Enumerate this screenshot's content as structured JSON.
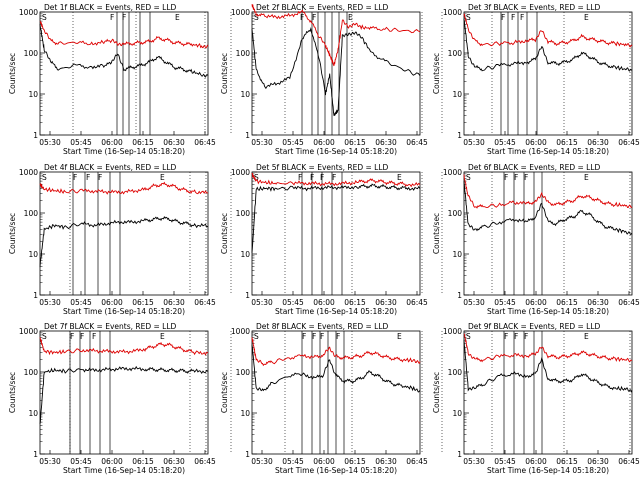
{
  "colors": {
    "events": "#000000",
    "lld": "#dd0000",
    "frame": "#000000",
    "background": "#ffffff"
  },
  "chart_data": [
    {
      "type": "line",
      "title": "Det 1f BLACK = Events, RED = LLD",
      "ylabel": "Counts/sec",
      "xlabel": "Start Time (16-Sep-14 05:18:20)",
      "yscale": "log",
      "ylim": [
        1,
        1000
      ],
      "xlim_min": [
        18,
        98
      ],
      "x_tick_labels": [
        "05:30",
        "05:45",
        "06:00",
        "06:15",
        "06:30",
        "06:45"
      ],
      "y_tick_labels": [
        "1",
        "10",
        "100",
        "1000"
      ],
      "flag_labels": [
        "S",
        "F",
        "F",
        "E"
      ],
      "series": [
        {
          "color": "#dd0000",
          "x": [
            18,
            20,
            23,
            27,
            35,
            42,
            48,
            52,
            55,
            58,
            62,
            66,
            70,
            74,
            78,
            82,
            86,
            90,
            95,
            98
          ],
          "values": [
            600,
            350,
            200,
            170,
            180,
            170,
            180,
            200,
            170,
            165,
            170,
            180,
            190,
            230,
            210,
            180,
            170,
            160,
            150,
            145
          ]
        },
        {
          "color": "#000000",
          "x": [
            18,
            20,
            23,
            27,
            35,
            42,
            48,
            52,
            55,
            58,
            62,
            66,
            70,
            74,
            78,
            82,
            86,
            90,
            95,
            98
          ],
          "values": [
            500,
            120,
            60,
            40,
            50,
            45,
            50,
            55,
            100,
            40,
            45,
            50,
            60,
            80,
            60,
            45,
            40,
            35,
            30,
            28
          ]
        }
      ]
    },
    {
      "type": "line",
      "title": "Det 2f BLACK = Events, RED = LLD",
      "ylabel": "Counts/sec",
      "xlabel": "Start Time (16-Sep-14 05:18:20)",
      "yscale": "log",
      "ylim": [
        1,
        1000
      ],
      "xlim_min": [
        18,
        98
      ],
      "x_tick_labels": [
        "05:30",
        "05:45",
        "06:00",
        "06:15",
        "06:30",
        "06:45"
      ],
      "y_tick_labels": [
        "1",
        "10",
        "100",
        "1000"
      ],
      "flag_labels": [
        "S",
        "F",
        "F",
        "E"
      ],
      "series": [
        {
          "color": "#dd0000",
          "x": [
            18,
            20,
            24,
            30,
            36,
            42,
            46,
            50,
            53,
            55,
            57,
            59,
            61,
            64,
            67,
            70,
            75,
            82,
            90,
            98
          ],
          "values": [
            1500,
            900,
            800,
            750,
            820,
            1000,
            600,
            250,
            150,
            90,
            50,
            120,
            600,
            450,
            500,
            420,
            400,
            380,
            350,
            330
          ]
        },
        {
          "color": "#000000",
          "x": [
            18,
            20,
            24,
            30,
            36,
            42,
            46,
            50,
            53,
            55,
            57,
            59,
            61,
            64,
            67,
            70,
            75,
            82,
            90,
            98
          ],
          "values": [
            400,
            40,
            15,
            18,
            25,
            220,
            400,
            70,
            10,
            30,
            3,
            4,
            250,
            300,
            300,
            250,
            100,
            60,
            40,
            28
          ]
        }
      ]
    },
    {
      "type": "line",
      "title": "Det 3f BLACK = Events, RED = LLD",
      "ylabel": "Counts/sec",
      "xlabel": "Start Time (16-Sep-14 05:18:20)",
      "yscale": "log",
      "ylim": [
        1,
        1000
      ],
      "xlim_min": [
        18,
        98
      ],
      "x_tick_labels": [
        "05:30",
        "05:45",
        "06:00",
        "06:15",
        "06:30",
        "06:45"
      ],
      "y_tick_labels": [
        "1",
        "10",
        "100",
        "1000"
      ],
      "flag_labels": [
        "S",
        "F",
        "F",
        "F",
        "E"
      ],
      "series": [
        {
          "color": "#dd0000",
          "x": [
            18,
            20,
            23,
            27,
            35,
            42,
            48,
            52,
            55,
            58,
            62,
            66,
            70,
            74,
            78,
            82,
            86,
            90,
            95,
            98
          ],
          "values": [
            900,
            400,
            200,
            160,
            170,
            180,
            200,
            210,
            350,
            190,
            170,
            180,
            200,
            250,
            220,
            200,
            180,
            170,
            160,
            150
          ]
        },
        {
          "color": "#000000",
          "x": [
            18,
            20,
            23,
            27,
            35,
            42,
            48,
            52,
            55,
            58,
            62,
            66,
            70,
            74,
            78,
            82,
            86,
            90,
            95,
            98
          ],
          "values": [
            700,
            90,
            45,
            40,
            50,
            55,
            60,
            70,
            140,
            60,
            55,
            60,
            70,
            100,
            80,
            60,
            50,
            45,
            40,
            38
          ]
        }
      ]
    },
    {
      "type": "line",
      "title": "Det 4f BLACK = Events, RED = LLD",
      "ylabel": "Counts/sec",
      "xlabel": "Start Time (16-Sep-14 05:18:20)",
      "yscale": "log",
      "ylim": [
        1,
        1000
      ],
      "xlim_min": [
        18,
        98
      ],
      "x_tick_labels": [
        "05:30",
        "05:45",
        "06:00",
        "06:15",
        "06:30",
        "06:45"
      ],
      "y_tick_labels": [
        "1",
        "10",
        "100",
        "1000"
      ],
      "flag_labels": [
        "S",
        "F",
        "F",
        "F",
        "E"
      ],
      "series": [
        {
          "color": "#dd0000",
          "x": [
            18,
            20,
            25,
            30,
            38,
            44,
            50,
            56,
            62,
            68,
            72,
            76,
            80,
            84,
            88,
            92,
            98
          ],
          "values": [
            500,
            380,
            350,
            330,
            350,
            340,
            330,
            320,
            340,
            380,
            450,
            500,
            480,
            400,
            350,
            320,
            310
          ]
        },
        {
          "color": "#000000",
          "x": [
            18,
            20,
            25,
            30,
            38,
            44,
            50,
            56,
            62,
            68,
            72,
            76,
            80,
            84,
            88,
            92,
            98
          ],
          "values": [
            5,
            40,
            50,
            45,
            55,
            50,
            55,
            60,
            60,
            65,
            70,
            75,
            70,
            60,
            55,
            50,
            48
          ]
        }
      ]
    },
    {
      "type": "line",
      "title": "Det 5f BLACK = Events, RED = LLD",
      "ylabel": "Counts/sec",
      "xlabel": "Start Time (16-Sep-14 05:18:20)",
      "yscale": "log",
      "ylim": [
        1,
        1000
      ],
      "xlim_min": [
        18,
        98
      ],
      "x_tick_labels": [
        "05:30",
        "05:45",
        "06:00",
        "06:15",
        "06:30",
        "06:45"
      ],
      "y_tick_labels": [
        "1",
        "10",
        "100",
        "1000"
      ],
      "flag_labels": [
        "S",
        "F",
        "F",
        "F",
        "F",
        "E"
      ],
      "series": [
        {
          "color": "#dd0000",
          "x": [
            18,
            20,
            25,
            30,
            38,
            44,
            50,
            56,
            62,
            68,
            72,
            76,
            80,
            84,
            88,
            92,
            98
          ],
          "values": [
            900,
            600,
            550,
            520,
            540,
            530,
            520,
            510,
            530,
            560,
            600,
            620,
            580,
            540,
            520,
            500,
            490
          ]
        },
        {
          "color": "#000000",
          "x": [
            18,
            20,
            25,
            30,
            38,
            44,
            50,
            56,
            62,
            68,
            72,
            76,
            80,
            84,
            88,
            92,
            98
          ],
          "values": [
            10,
            380,
            400,
            390,
            410,
            400,
            410,
            420,
            420,
            430,
            450,
            460,
            440,
            420,
            410,
            400,
            390
          ]
        }
      ]
    },
    {
      "type": "line",
      "title": "Det 6f BLACK = Events, RED = LLD",
      "ylabel": "Counts/sec",
      "xlabel": "Start Time (16-Sep-14 05:18:20)",
      "yscale": "log",
      "ylim": [
        1,
        1000
      ],
      "xlim_min": [
        18,
        98
      ],
      "x_tick_labels": [
        "05:30",
        "05:45",
        "06:00",
        "06:15",
        "06:30",
        "06:45"
      ],
      "y_tick_labels": [
        "1",
        "10",
        "100",
        "1000"
      ],
      "flag_labels": [
        "S",
        "F",
        "F",
        "F",
        "E"
      ],
      "series": [
        {
          "color": "#dd0000",
          "x": [
            18,
            20,
            23,
            27,
            35,
            42,
            48,
            52,
            55,
            58,
            62,
            66,
            70,
            74,
            78,
            82,
            86,
            90,
            95,
            98
          ],
          "values": [
            800,
            250,
            150,
            140,
            160,
            180,
            170,
            190,
            300,
            180,
            160,
            180,
            200,
            260,
            240,
            200,
            170,
            160,
            150,
            140
          ]
        },
        {
          "color": "#000000",
          "x": [
            18,
            20,
            23,
            27,
            35,
            42,
            48,
            52,
            55,
            58,
            62,
            66,
            70,
            74,
            78,
            82,
            86,
            90,
            95,
            98
          ],
          "values": [
            600,
            50,
            40,
            45,
            60,
            70,
            60,
            80,
            180,
            60,
            55,
            70,
            80,
            110,
            90,
            60,
            45,
            40,
            35,
            30
          ]
        }
      ]
    },
    {
      "type": "line",
      "title": "Det 7f BLACK = Events, RED = LLD",
      "ylabel": "Counts/sec",
      "xlabel": "Start Time (16-Sep-14 05:18:20)",
      "yscale": "log",
      "ylim": [
        1,
        1000
      ],
      "xlim_min": [
        18,
        98
      ],
      "x_tick_labels": [
        "05:30",
        "05:45",
        "06:00",
        "06:15",
        "06:30",
        "06:45"
      ],
      "y_tick_labels": [
        "1",
        "10",
        "100",
        "1000"
      ],
      "flag_labels": [
        "S",
        "F",
        "F",
        "F",
        "E"
      ],
      "series": [
        {
          "color": "#dd0000",
          "x": [
            18,
            20,
            25,
            30,
            38,
            44,
            50,
            56,
            62,
            68,
            72,
            76,
            80,
            84,
            88,
            92,
            98
          ],
          "values": [
            700,
            320,
            300,
            310,
            340,
            330,
            320,
            310,
            320,
            360,
            420,
            480,
            450,
            380,
            330,
            300,
            290
          ]
        },
        {
          "color": "#000000",
          "x": [
            18,
            20,
            25,
            30,
            38,
            44,
            50,
            56,
            62,
            68,
            72,
            76,
            80,
            84,
            88,
            92,
            98
          ],
          "values": [
            5,
            100,
            110,
            105,
            115,
            110,
            115,
            120,
            120,
            118,
            115,
            112,
            110,
            108,
            105,
            104,
            103
          ]
        }
      ]
    },
    {
      "type": "line",
      "title": "Det 8f BLACK = Events, RED = LLD",
      "ylabel": "Counts/sec",
      "xlabel": "Start Time (16-Sep-14 05:18:20)",
      "yscale": "log",
      "ylim": [
        1,
        1000
      ],
      "xlim_min": [
        18,
        98
      ],
      "x_tick_labels": [
        "05:30",
        "05:45",
        "06:00",
        "06:15",
        "06:30",
        "06:45"
      ],
      "y_tick_labels": [
        "1",
        "10",
        "100",
        "1000"
      ],
      "flag_labels": [
        "S",
        "F",
        "F",
        "F",
        "F",
        "E"
      ],
      "series": [
        {
          "color": "#dd0000",
          "x": [
            18,
            20,
            23,
            27,
            35,
            42,
            48,
            52,
            55,
            58,
            62,
            66,
            70,
            74,
            78,
            82,
            86,
            90,
            95,
            98
          ],
          "values": [
            700,
            200,
            160,
            170,
            220,
            250,
            230,
            260,
            380,
            240,
            220,
            230,
            250,
            300,
            270,
            230,
            210,
            200,
            190,
            180
          ]
        },
        {
          "color": "#000000",
          "x": [
            18,
            20,
            23,
            27,
            35,
            42,
            48,
            52,
            55,
            58,
            62,
            66,
            70,
            74,
            78,
            82,
            86,
            90,
            95,
            98
          ],
          "values": [
            500,
            40,
            35,
            50,
            80,
            90,
            70,
            85,
            200,
            80,
            60,
            60,
            70,
            100,
            80,
            60,
            50,
            45,
            40,
            35
          ]
        }
      ]
    },
    {
      "type": "line",
      "title": "Det 9f BLACK = Events, RED = LLD",
      "ylabel": "Counts/sec",
      "xlabel": "Start Time (16-Sep-14 05:18:20)",
      "yscale": "log",
      "ylim": [
        1,
        1000
      ],
      "xlim_min": [
        18,
        98
      ],
      "x_tick_labels": [
        "05:30",
        "05:45",
        "06:00",
        "06:15",
        "06:30",
        "06:45"
      ],
      "y_tick_labels": [
        "1",
        "10",
        "100",
        "1000"
      ],
      "flag_labels": [
        "S",
        "F",
        "F",
        "F",
        "E"
      ],
      "series": [
        {
          "color": "#dd0000",
          "x": [
            18,
            20,
            23,
            27,
            35,
            42,
            48,
            52,
            55,
            58,
            62,
            66,
            70,
            74,
            78,
            82,
            86,
            90,
            95,
            98
          ],
          "values": [
            900,
            300,
            200,
            200,
            240,
            260,
            250,
            270,
            400,
            250,
            230,
            240,
            260,
            300,
            270,
            240,
            220,
            210,
            200,
            190
          ]
        },
        {
          "color": "#000000",
          "x": [
            18,
            20,
            23,
            27,
            35,
            42,
            48,
            52,
            55,
            58,
            62,
            66,
            70,
            74,
            78,
            82,
            86,
            90,
            95,
            98
          ],
          "values": [
            600,
            40,
            40,
            50,
            80,
            90,
            80,
            90,
            200,
            70,
            60,
            60,
            65,
            90,
            70,
            55,
            45,
            40,
            38,
            35
          ]
        }
      ]
    }
  ]
}
